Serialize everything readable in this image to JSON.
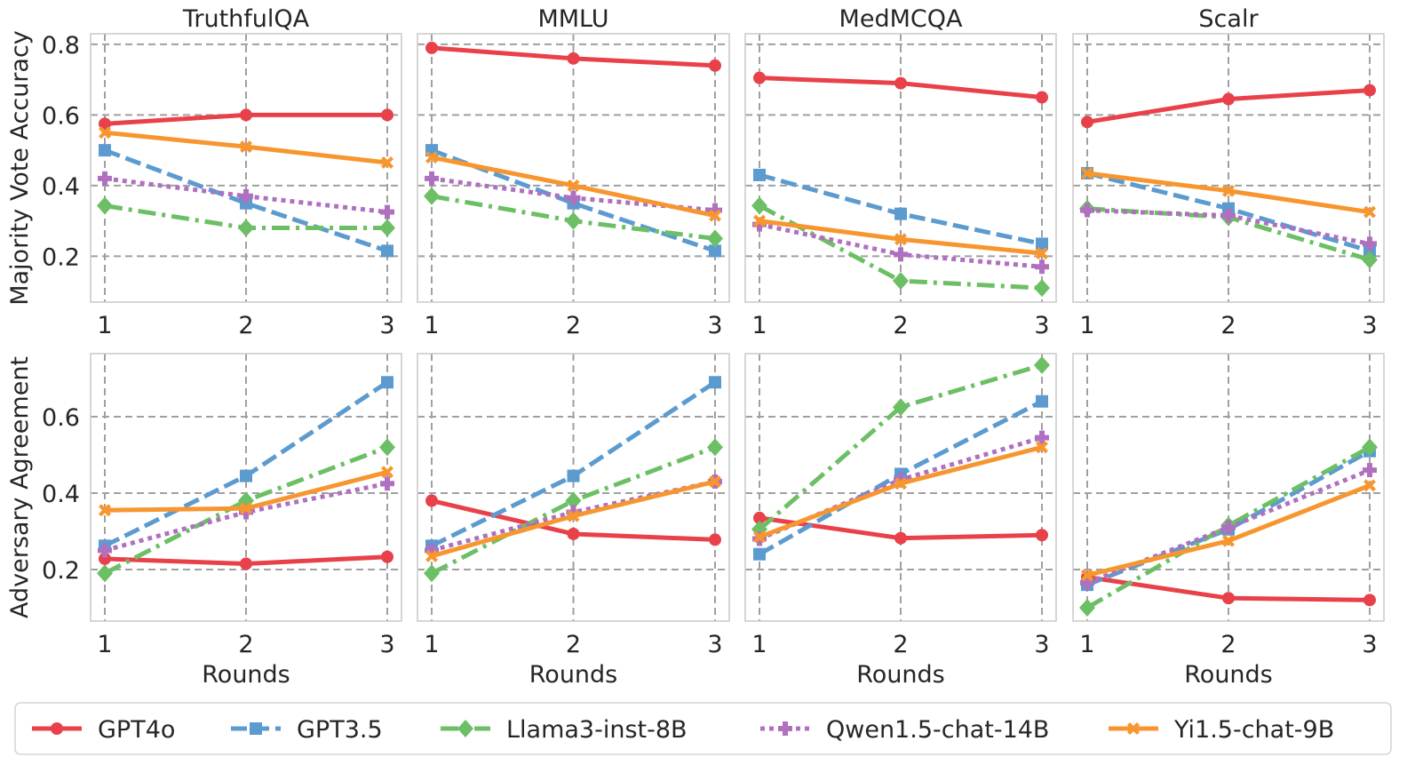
{
  "chart_data": {
    "type": "line",
    "rows": [
      {
        "ylabel": "Majority Vote Accuracy",
        "ylim": [
          0.07,
          0.83
        ],
        "yticks": [
          "0.2",
          "0.4",
          "0.6",
          "0.8"
        ],
        "ytick_values": [
          0.2,
          0.4,
          0.6,
          0.8
        ],
        "show_xlabel": false
      },
      {
        "ylabel": "Adversary Agreement",
        "ylim": [
          0.065,
          0.765
        ],
        "yticks": [
          "0.2",
          "0.4",
          "0.6"
        ],
        "ytick_values": [
          0.2,
          0.4,
          0.6
        ],
        "show_xlabel": true
      }
    ],
    "xlabel": "Rounds",
    "x": [
      1,
      2,
      3
    ],
    "xticks": [
      "1",
      "2",
      "3"
    ],
    "grid": true,
    "legend_position": "bottom",
    "series": [
      {
        "name": "GPT4o",
        "color": "#e8414a",
        "dash": "solid",
        "marker": "circle"
      },
      {
        "name": "GPT3.5",
        "color": "#5b9bd0",
        "dash": "dashed",
        "marker": "square"
      },
      {
        "name": "Llama3-inst-8B",
        "color": "#6cbf64",
        "dash": "dashdot",
        "marker": "diamond"
      },
      {
        "name": "Qwen1.5-chat-14B",
        "color": "#b070c0",
        "dash": "dotted",
        "marker": "plus"
      },
      {
        "name": "Yi1.5-chat-9B",
        "color": "#f7962f",
        "dash": "solid",
        "marker": "x"
      }
    ],
    "panels": [
      {
        "title": "TruthfulQA",
        "row": 0,
        "values": {
          "GPT4o": [
            0.575,
            0.6,
            0.6
          ],
          "GPT3.5": [
            0.5,
            0.35,
            0.215
          ],
          "Llama3-inst-8B": [
            0.343,
            0.28,
            0.28
          ],
          "Qwen1.5-chat-14B": [
            0.42,
            0.37,
            0.325
          ],
          "Yi1.5-chat-9B": [
            0.55,
            0.51,
            0.465
          ]
        }
      },
      {
        "title": "MMLU",
        "row": 0,
        "values": {
          "GPT4o": [
            0.79,
            0.76,
            0.74
          ],
          "GPT3.5": [
            0.5,
            0.35,
            0.215
          ],
          "Llama3-inst-8B": [
            0.37,
            0.3,
            0.25
          ],
          "Qwen1.5-chat-14B": [
            0.42,
            0.365,
            0.33
          ],
          "Yi1.5-chat-9B": [
            0.48,
            0.4,
            0.315
          ]
        }
      },
      {
        "title": "MedMCQA",
        "row": 0,
        "values": {
          "GPT4o": [
            0.705,
            0.69,
            0.65
          ],
          "GPT3.5": [
            0.43,
            0.32,
            0.235
          ],
          "Llama3-inst-8B": [
            0.343,
            0.13,
            0.11
          ],
          "Qwen1.5-chat-14B": [
            0.29,
            0.205,
            0.17
          ],
          "Yi1.5-chat-9B": [
            0.3,
            0.248,
            0.208
          ]
        }
      },
      {
        "title": "Scalr",
        "row": 0,
        "values": {
          "GPT4o": [
            0.58,
            0.645,
            0.67
          ],
          "GPT3.5": [
            0.435,
            0.335,
            0.215
          ],
          "Llama3-inst-8B": [
            0.335,
            0.31,
            0.19
          ],
          "Qwen1.5-chat-14B": [
            0.33,
            0.315,
            0.235
          ],
          "Yi1.5-chat-9B": [
            0.435,
            0.385,
            0.325
          ]
        }
      },
      {
        "title": "TruthfulQA",
        "row": 1,
        "values": {
          "GPT4o": [
            0.228,
            0.215,
            0.233
          ],
          "GPT3.5": [
            0.262,
            0.445,
            0.69
          ],
          "Llama3-inst-8B": [
            0.19,
            0.38,
            0.52
          ],
          "Qwen1.5-chat-14B": [
            0.25,
            0.35,
            0.425
          ],
          "Yi1.5-chat-9B": [
            0.355,
            0.36,
            0.455
          ]
        }
      },
      {
        "title": "MMLU",
        "row": 1,
        "values": {
          "GPT4o": [
            0.38,
            0.293,
            0.278
          ],
          "GPT3.5": [
            0.262,
            0.445,
            0.69
          ],
          "Llama3-inst-8B": [
            0.19,
            0.38,
            0.52
          ],
          "Qwen1.5-chat-14B": [
            0.25,
            0.35,
            0.43
          ],
          "Yi1.5-chat-9B": [
            0.235,
            0.34,
            0.43
          ]
        }
      },
      {
        "title": "MedMCQA",
        "row": 1,
        "values": {
          "GPT4o": [
            0.335,
            0.282,
            0.29
          ],
          "GPT3.5": [
            0.24,
            0.45,
            0.64
          ],
          "Llama3-inst-8B": [
            0.305,
            0.625,
            0.735
          ],
          "Qwen1.5-chat-14B": [
            0.28,
            0.435,
            0.545
          ],
          "Yi1.5-chat-9B": [
            0.285,
            0.425,
            0.52
          ]
        }
      },
      {
        "title": "Scalr",
        "row": 1,
        "values": {
          "GPT4o": [
            0.18,
            0.125,
            0.12
          ],
          "GPT3.5": [
            0.16,
            0.305,
            0.51
          ],
          "Llama3-inst-8B": [
            0.1,
            0.315,
            0.52
          ],
          "Qwen1.5-chat-14B": [
            0.165,
            0.31,
            0.46
          ],
          "Yi1.5-chat-9B": [
            0.185,
            0.275,
            0.42
          ]
        }
      }
    ]
  }
}
